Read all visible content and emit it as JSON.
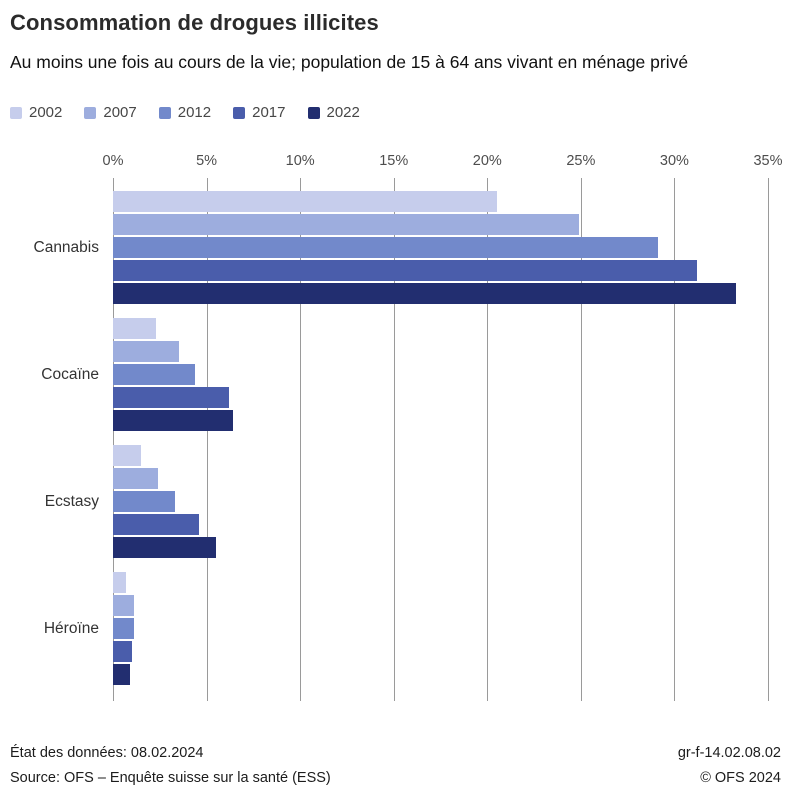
{
  "chart_data": {
    "type": "bar",
    "orientation": "horizontal",
    "title": "Consommation de drogues illicites",
    "subtitle": "Au moins une fois au cours de la vie; population de 15 à 64 ans vivant en ménage privé",
    "categories": [
      "Cannabis",
      "Cocaïne",
      "Ecstasy",
      "Héroïne"
    ],
    "series": [
      {
        "name": "2002",
        "color": "#c6cdec",
        "values": [
          20.5,
          2.3,
          1.5,
          0.7
        ]
      },
      {
        "name": "2007",
        "color": "#9dadde",
        "values": [
          24.9,
          3.5,
          2.4,
          1.1
        ]
      },
      {
        "name": "2012",
        "color": "#7289cb",
        "values": [
          29.1,
          4.4,
          3.3,
          1.1
        ]
      },
      {
        "name": "2017",
        "color": "#4a5dab",
        "values": [
          31.2,
          6.2,
          4.6,
          1.0
        ]
      },
      {
        "name": "2022",
        "color": "#222e70",
        "values": [
          33.3,
          6.4,
          5.5,
          0.9
        ]
      }
    ],
    "xlim": [
      0,
      35
    ],
    "tick_step": 5,
    "tick_suffix": "%",
    "xlabel": "",
    "ylabel": "",
    "grid": true,
    "legend_position": "top"
  },
  "footer": {
    "status": "État des données: 08.02.2024",
    "source": "Source: OFS – Enquête suisse sur la santé (ESS)",
    "reference": "gr-f-14.02.08.02",
    "copyright": "© OFS 2024"
  }
}
